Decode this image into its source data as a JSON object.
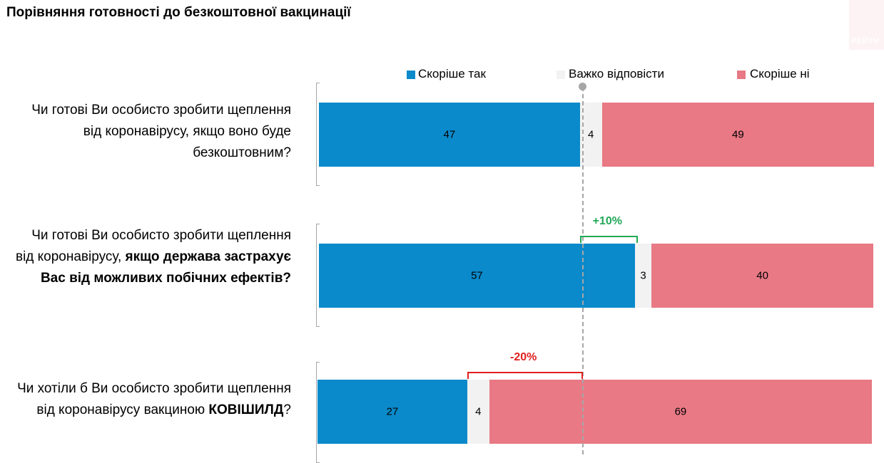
{
  "title": "Порівняння готовності до безкоштовної вакцинації",
  "logo": {
    "text": "РЕЙТИ",
    "color": "#e8747f"
  },
  "legend": [
    {
      "label": "Скоріше так",
      "color": "#0a8acb"
    },
    {
      "label": "Важко відповісти",
      "color": "#f2f2f2"
    },
    {
      "label": "Скоріше ні",
      "color": "#e87985"
    }
  ],
  "questions": [
    {
      "parts": [
        "Чи готові Ви особисто зробити щеплення від коронавірусу, якщо воно буде безкоштовним?",
        "",
        ""
      ]
    },
    {
      "parts": [
        "Чи готові Ви особисто зробити щеплення від коронавірусу, ",
        "якщо держава застрахує Вас від можливих побічних ефектів?",
        ""
      ]
    },
    {
      "parts": [
        "Чи хотіли б Ви особисто зробити щеплення від коронавірусу вакциною ",
        "КОВІШИЛД",
        "?"
      ]
    }
  ],
  "differences": [
    {
      "label": "+10%",
      "color": "#21a957"
    },
    {
      "label": "-20%",
      "color": "#e02020"
    }
  ],
  "chart_data": {
    "type": "bar",
    "orientation": "horizontal",
    "stacked": true,
    "categories": [
      "Чи готові Ви особисто зробити щеплення від коронавірусу, якщо воно буде безкоштовним?",
      "Чи готові Ви особисто зробити щеплення від коронавірусу, якщо держава застрахує Вас від можливих побічних ефектів?",
      "Чи хотіли б Ви особисто зробити щеплення від коронавірусу вакциною КОВІШИЛД?"
    ],
    "series": [
      {
        "name": "Скоріше так",
        "values": [
          47,
          57,
          27
        ],
        "color": "#0a8acb"
      },
      {
        "name": "Важко відповісти",
        "values": [
          4,
          3,
          4
        ],
        "color": "#f2f2f2"
      },
      {
        "name": "Скоріше ні",
        "values": [
          49,
          40,
          69
        ],
        "color": "#e87985"
      }
    ],
    "xlim": [
      0,
      100
    ],
    "legend_position": "top",
    "reference_line": "dashed vertical line at end of first-row 'Скоріше так' segment"
  }
}
